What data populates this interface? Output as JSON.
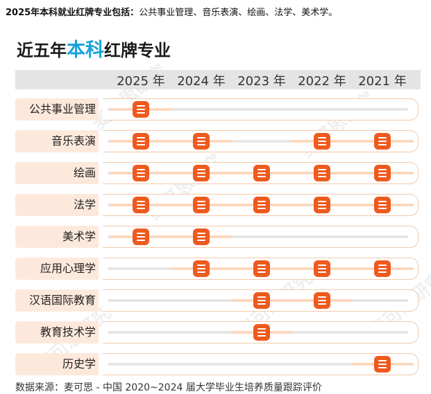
{
  "caption": {
    "lead": "2025年本科就业红牌专业包括：",
    "majors": "公共事业管理、音乐表演、绘画、法学、美术学。"
  },
  "title": {
    "prefix": "近五年",
    "highlight": "本科",
    "suffix": "红牌专业"
  },
  "watermark": "麦可思研究",
  "source": "数据来源：麦可思 - 中国 2020~2024 届大学毕业生培养质量跟踪评价",
  "colors": {
    "marker": "#ee5a1e",
    "highlight": "#17a3d9",
    "label_bg": "#fde9dc"
  },
  "chart_data": {
    "type": "table",
    "title": "近五年本科红牌专业",
    "columns": [
      "2025 年",
      "2024 年",
      "2023 年",
      "2022 年",
      "2021 年"
    ],
    "rows": [
      {
        "major": "公共事业管理",
        "red_card": [
          true,
          false,
          false,
          false,
          false
        ]
      },
      {
        "major": "音乐表演",
        "red_card": [
          true,
          true,
          false,
          true,
          true
        ]
      },
      {
        "major": "绘画",
        "red_card": [
          true,
          true,
          true,
          true,
          true
        ]
      },
      {
        "major": "法学",
        "red_card": [
          true,
          true,
          true,
          true,
          true
        ]
      },
      {
        "major": "美术学",
        "red_card": [
          true,
          true,
          false,
          false,
          false
        ]
      },
      {
        "major": "应用心理学",
        "red_card": [
          false,
          true,
          true,
          true,
          true
        ]
      },
      {
        "major": "汉语国际教育",
        "red_card": [
          false,
          false,
          true,
          true,
          false
        ]
      },
      {
        "major": "教育技术学",
        "red_card": [
          false,
          false,
          true,
          false,
          false
        ]
      },
      {
        "major": "历史学",
        "red_card": [
          false,
          false,
          false,
          false,
          true
        ]
      }
    ]
  }
}
